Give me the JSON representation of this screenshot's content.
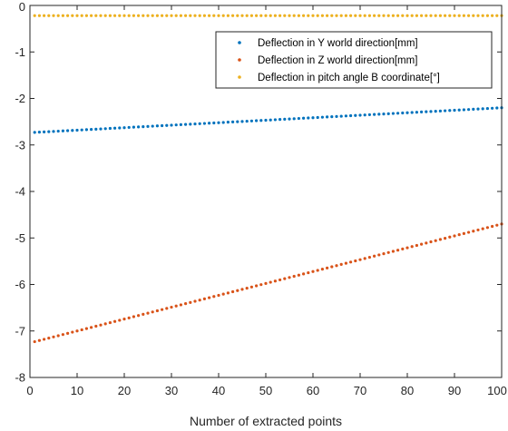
{
  "chart_data": {
    "type": "scatter",
    "title": "",
    "xlabel": "Number of extracted points",
    "ylabel": "",
    "xlim": [
      0,
      100
    ],
    "ylim": [
      -8,
      0
    ],
    "xticks": [
      0,
      10,
      20,
      30,
      40,
      50,
      60,
      70,
      80,
      90,
      100
    ],
    "yticks": [
      0,
      -1,
      -2,
      -3,
      -4,
      -5,
      -6,
      -7,
      -8
    ],
    "xtick_labels": [
      "0",
      "10",
      "20",
      "30",
      "40",
      "50",
      "60",
      "70",
      "80",
      "90",
      "100"
    ],
    "ytick_labels": [
      "0",
      "-1",
      "-2",
      "-3",
      "-4",
      "-5",
      "-6",
      "-7",
      "-8"
    ],
    "grid": false,
    "legend_position": "top-right",
    "x": {
      "start": 1,
      "end": 100,
      "step": 1
    },
    "series": [
      {
        "name": "Deflection in Y world direction[mm]",
        "color": "#0072BD",
        "y_first": -2.73,
        "y_last": -2.2,
        "trend": "linear"
      },
      {
        "name": "Deflection in Z world direction[mm]",
        "color": "#D95319",
        "y_first": -7.23,
        "y_last": -4.7,
        "trend": "linear"
      },
      {
        "name": "Deflection in pitch angle B coordinate[°]",
        "color": "#EDB120",
        "y_first": -0.22,
        "y_last": -0.22,
        "trend": "constant"
      }
    ]
  }
}
